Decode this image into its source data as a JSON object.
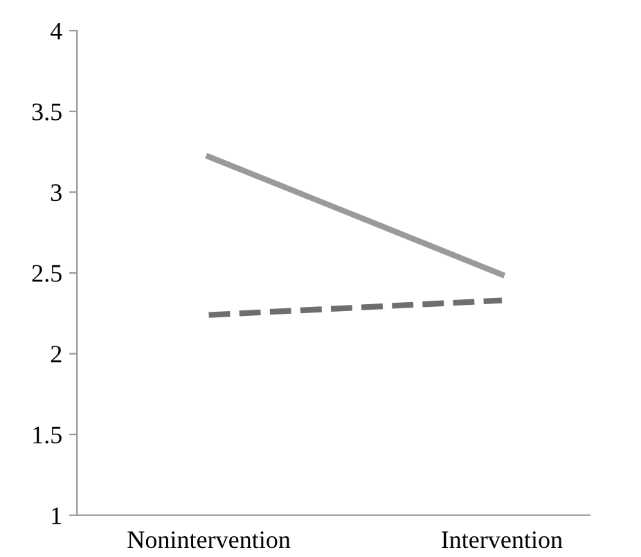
{
  "chart_data": {
    "type": "line",
    "categories": [
      "Nonintervention",
      "Intervention"
    ],
    "series": [
      {
        "color": "#9a9a9a",
        "values": [
          3.22,
          2.49
        ],
        "line_style": "solid"
      },
      {
        "color": "#6e6e6e",
        "values": [
          2.24,
          2.33
        ],
        "line_style": "dashed"
      }
    ],
    "ylim": [
      1,
      4
    ],
    "yticks": [
      1,
      {
        "value": 1.5,
        "label": "1.5"
      },
      2,
      {
        "value": 2.5,
        "label": "2.5"
      },
      3,
      {
        "value": 3.5,
        "label": "3.5"
      },
      4
    ],
    "grid": false,
    "legend": false,
    "marker": "none"
  }
}
